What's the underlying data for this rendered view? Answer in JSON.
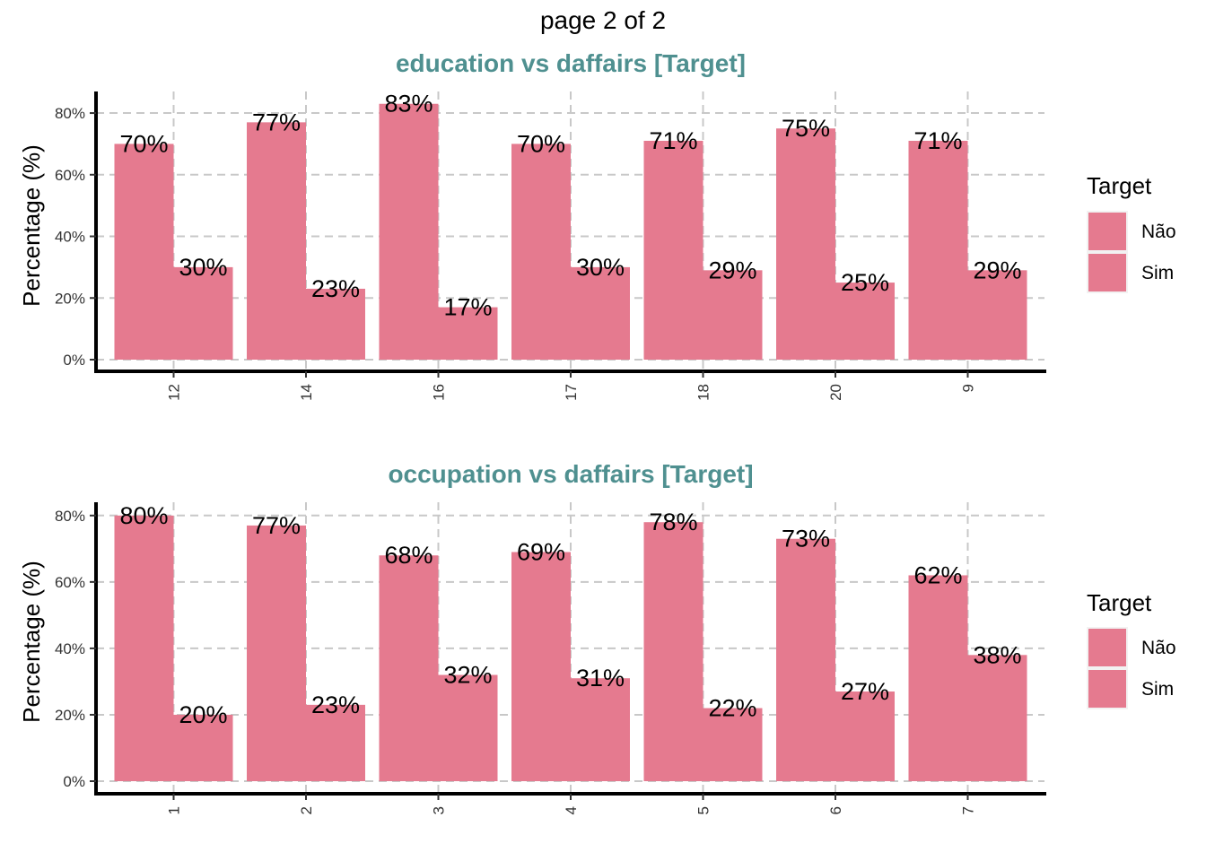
{
  "page_title": "page 2 of 2",
  "colors": {
    "bar": "#e57a8f",
    "title": "#4f9090",
    "grid": "#c8c8c8",
    "axis": "#000000"
  },
  "chart_data": [
    {
      "type": "bar",
      "title": "education vs daffairs [Target]",
      "ylabel": "Percentage (%)",
      "xlabel": "",
      "ylim": [
        0,
        87
      ],
      "yticks": [
        0,
        20,
        40,
        60,
        80
      ],
      "ytick_labels": [
        "0%",
        "20%",
        "40%",
        "60%",
        "80%"
      ],
      "categories": [
        "12",
        "14",
        "16",
        "17",
        "18",
        "20",
        "9"
      ],
      "series": [
        {
          "name": "Não",
          "values": [
            70,
            77,
            83,
            70,
            71,
            75,
            71
          ],
          "labels": [
            "70%",
            "77%",
            "83%",
            "70%",
            "71%",
            "75%",
            "71%"
          ]
        },
        {
          "name": "Sim",
          "values": [
            30,
            23,
            17,
            30,
            29,
            25,
            29
          ],
          "labels": [
            "30%",
            "23%",
            "17%",
            "30%",
            "29%",
            "25%",
            "29%"
          ]
        }
      ],
      "legend": {
        "title": "Target",
        "position": "right"
      },
      "grid": true
    },
    {
      "type": "bar",
      "title": "occupation vs daffairs [Target]",
      "ylabel": "Percentage (%)",
      "xlabel": "",
      "ylim": [
        0,
        84
      ],
      "yticks": [
        0,
        20,
        40,
        60,
        80
      ],
      "ytick_labels": [
        "0%",
        "20%",
        "40%",
        "60%",
        "80%"
      ],
      "categories": [
        "1",
        "2",
        "3",
        "4",
        "5",
        "6",
        "7"
      ],
      "series": [
        {
          "name": "Não",
          "values": [
            80,
            77,
            68,
            69,
            78,
            73,
            62
          ],
          "labels": [
            "80%",
            "77%",
            "68%",
            "69%",
            "78%",
            "73%",
            "62%"
          ]
        },
        {
          "name": "Sim",
          "values": [
            20,
            23,
            32,
            31,
            22,
            27,
            38
          ],
          "labels": [
            "20%",
            "23%",
            "32%",
            "31%",
            "22%",
            "27%",
            "38%"
          ]
        }
      ],
      "legend": {
        "title": "Target",
        "position": "right"
      },
      "grid": true
    }
  ]
}
